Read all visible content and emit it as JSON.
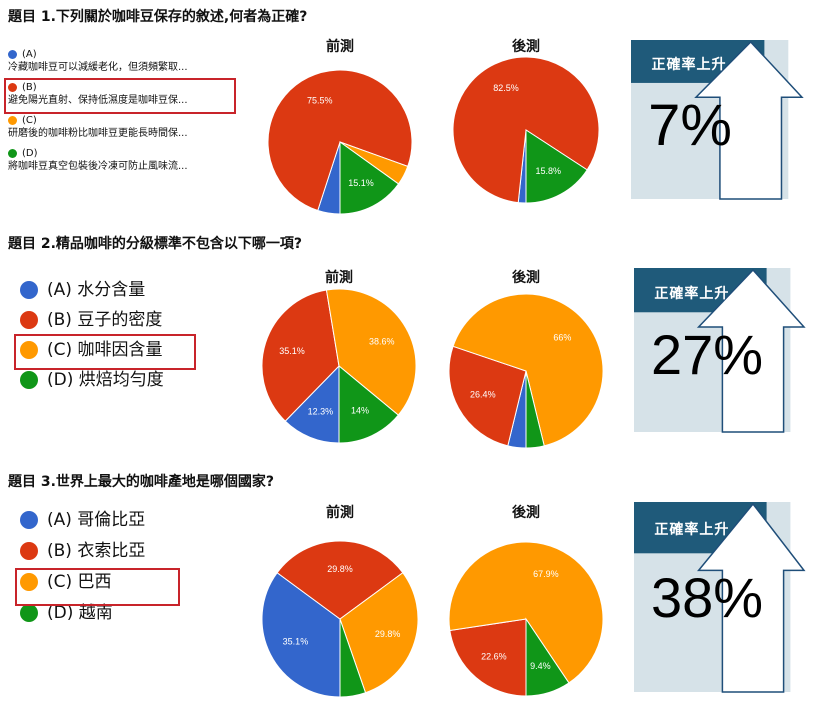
{
  "chart_data": [
    {
      "type": "pie",
      "title": "題目 1.下列關於咖啡豆保存的敘述,何者為正確?",
      "legend": [
        {
          "letter": "(A)",
          "text": "冷藏咖啡豆可以減緩老化，但須頻繁取...",
          "color": "#3366cc"
        },
        {
          "letter": "(B)",
          "text": "避免陽光直射、保持低濕度是咖啡豆保...",
          "color": "#dc3912"
        },
        {
          "letter": "(C)",
          "text": "研磨後的咖啡粉比咖啡豆更能長時間保...",
          "color": "#ff9900"
        },
        {
          "letter": "(D)",
          "text": "將咖啡豆真空包裝後冷凍可防止風味流...",
          "color": "#109618"
        }
      ],
      "highlighted_option": 1,
      "series": [
        {
          "name": "前測",
          "values": [
            5.0,
            75.5,
            4.4,
            15.1
          ],
          "labels": [
            "",
            "75.5%",
            "",
            "15.1%"
          ]
        },
        {
          "name": "後測",
          "values": [
            1.7,
            82.5,
            0,
            15.8
          ],
          "labels": [
            "",
            "82.5%",
            "",
            "15.8%"
          ]
        }
      ],
      "increase_label": "正確率上升",
      "increase_value": "7%"
    },
    {
      "type": "pie",
      "title": "題目 2.精品咖啡的分級標準不包含以下哪一項?",
      "legend": [
        {
          "letter": "(A)",
          "text": "水分含量",
          "color": "#3366cc"
        },
        {
          "letter": "(B)",
          "text": "豆子的密度",
          "color": "#dc3912"
        },
        {
          "letter": "(C)",
          "text": "咖啡因含量",
          "color": "#ff9900"
        },
        {
          "letter": "(D)",
          "text": "烘焙均勻度",
          "color": "#109618"
        }
      ],
      "highlighted_option": 2,
      "series": [
        {
          "name": "前測",
          "values": [
            12.3,
            35.1,
            38.6,
            14.0
          ],
          "labels": [
            "12.3%",
            "35.1%",
            "38.6%",
            "14%"
          ]
        },
        {
          "name": "後測",
          "values": [
            3.8,
            26.4,
            66.0,
            3.8
          ],
          "labels": [
            "",
            "26.4%",
            "66%",
            ""
          ]
        }
      ],
      "increase_label": "正確率上升",
      "increase_value": "27%"
    },
    {
      "type": "pie",
      "title": "題目 3.世界上最大的咖啡產地是哪個國家?",
      "legend": [
        {
          "letter": "(A)",
          "text": "哥倫比亞",
          "color": "#3366cc"
        },
        {
          "letter": "(B)",
          "text": "衣索比亞",
          "color": "#dc3912"
        },
        {
          "letter": "(C)",
          "text": "巴西",
          "color": "#ff9900"
        },
        {
          "letter": "(D)",
          "text": "越南",
          "color": "#109618"
        }
      ],
      "highlighted_option": 2,
      "series": [
        {
          "name": "前測",
          "values": [
            35.1,
            29.8,
            29.8,
            5.3
          ],
          "labels": [
            "35.1%",
            "29.8%",
            "29.8%",
            ""
          ]
        },
        {
          "name": "後測",
          "values": [
            0,
            22.6,
            67.9,
            9.4
          ],
          "labels": [
            "",
            "22.6%",
            "67.9%",
            "9.4%"
          ]
        }
      ],
      "increase_label": "正確率上升",
      "increase_value": "38%"
    }
  ],
  "colors": {
    "A": "#3366cc",
    "B": "#dc3912",
    "C": "#ff9900",
    "D": "#109618",
    "highlight_border": "#c8242a",
    "banner": "#1f5a7a",
    "panel": "#d6e2e8",
    "arrow_stroke": "#1f4e79"
  }
}
